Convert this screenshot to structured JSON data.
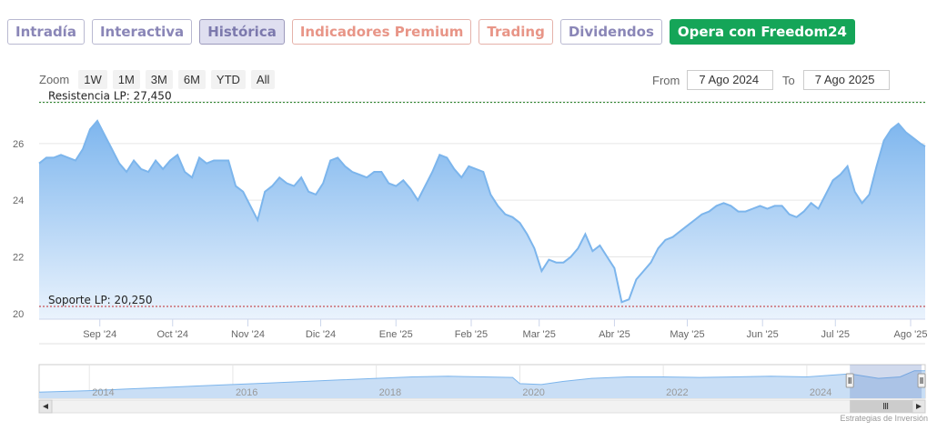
{
  "tabs": [
    {
      "label": "Intradía",
      "style": "purple"
    },
    {
      "label": "Interactiva",
      "style": "purple"
    },
    {
      "label": "Histórica",
      "style": "active"
    },
    {
      "label": "Indicadores Premium",
      "style": "coral"
    },
    {
      "label": "Trading",
      "style": "coral"
    },
    {
      "label": "Dividendos",
      "style": "purple"
    },
    {
      "label": "Opera con Freedom24",
      "style": "green"
    }
  ],
  "zoom": {
    "label": "Zoom",
    "buttons": [
      "1W",
      "1M",
      "3M",
      "6M",
      "YTD",
      "All"
    ]
  },
  "range": {
    "from_label": "From",
    "from_value": "7 Ago 2024",
    "to_label": "To",
    "to_value": "7 Ago 2025"
  },
  "credit": "Estrategias de Inversión",
  "colors": {
    "area_top": "#7eb6ee",
    "area_bottom": "#eaf3fd",
    "line": "#7cb5ec",
    "resistance": "#1a7a1a",
    "support": "#c0282d",
    "navigator_mask": "rgba(102,133,194,0.3)"
  },
  "chart_data": {
    "type": "area",
    "ylim": [
      19.8,
      27.6
    ],
    "yticks": [
      20,
      22,
      24,
      26
    ],
    "x_start": "2024-08-07",
    "x_end": "2025-08-07",
    "xticks": [
      {
        "date": "2024-09-01",
        "label": "Sep '24"
      },
      {
        "date": "2024-10-01",
        "label": "Oct '24"
      },
      {
        "date": "2024-11-01",
        "label": "Nov '24"
      },
      {
        "date": "2024-12-01",
        "label": "Dic '24"
      },
      {
        "date": "2025-01-01",
        "label": "Ene '25"
      },
      {
        "date": "2025-02-01",
        "label": "Feb '25"
      },
      {
        "date": "2025-03-01",
        "label": "Mar '25"
      },
      {
        "date": "2025-04-01",
        "label": "Abr '25"
      },
      {
        "date": "2025-05-01",
        "label": "May '25"
      },
      {
        "date": "2025-06-01",
        "label": "Jun '25"
      },
      {
        "date": "2025-07-01",
        "label": "Jul '25"
      },
      {
        "date": "2025-08-01",
        "label": "Ago '25"
      }
    ],
    "reference_lines": [
      {
        "label": "Resistencia LP: 27,450",
        "value": 27.45,
        "kind": "resistance"
      },
      {
        "label": "Soporte LP: 20,250",
        "value": 20.25,
        "kind": "support"
      }
    ],
    "series": [
      {
        "dates": [
          "2024-08-07",
          "2024-08-10",
          "2024-08-13",
          "2024-08-16",
          "2024-08-19",
          "2024-08-22",
          "2024-08-25",
          "2024-08-28",
          "2024-08-31",
          "2024-09-03",
          "2024-09-06",
          "2024-09-09",
          "2024-09-12",
          "2024-09-15",
          "2024-09-18",
          "2024-09-21",
          "2024-09-24",
          "2024-09-27",
          "2024-09-30",
          "2024-10-03",
          "2024-10-06",
          "2024-10-09",
          "2024-10-12",
          "2024-10-15",
          "2024-10-18",
          "2024-10-21",
          "2024-10-24",
          "2024-10-27",
          "2024-10-30",
          "2024-11-02",
          "2024-11-05",
          "2024-11-08",
          "2024-11-11",
          "2024-11-14",
          "2024-11-17",
          "2024-11-20",
          "2024-11-23",
          "2024-11-26",
          "2024-11-29",
          "2024-12-02",
          "2024-12-05",
          "2024-12-08",
          "2024-12-11",
          "2024-12-14",
          "2024-12-17",
          "2024-12-20",
          "2024-12-23",
          "2024-12-26",
          "2024-12-29",
          "2025-01-01",
          "2025-01-04",
          "2025-01-07",
          "2025-01-10",
          "2025-01-13",
          "2025-01-16",
          "2025-01-19",
          "2025-01-22",
          "2025-01-25",
          "2025-01-28",
          "2025-01-31",
          "2025-02-03",
          "2025-02-06",
          "2025-02-09",
          "2025-02-12",
          "2025-02-15",
          "2025-02-18",
          "2025-02-21",
          "2025-02-24",
          "2025-02-27",
          "2025-03-02",
          "2025-03-05",
          "2025-03-08",
          "2025-03-11",
          "2025-03-14",
          "2025-03-17",
          "2025-03-20",
          "2025-03-23",
          "2025-03-26",
          "2025-03-29",
          "2025-04-01",
          "2025-04-04",
          "2025-04-07",
          "2025-04-10",
          "2025-04-13",
          "2025-04-16",
          "2025-04-19",
          "2025-04-22",
          "2025-04-25",
          "2025-04-28",
          "2025-05-01",
          "2025-05-04",
          "2025-05-07",
          "2025-05-10",
          "2025-05-13",
          "2025-05-16",
          "2025-05-19",
          "2025-05-22",
          "2025-05-25",
          "2025-05-28",
          "2025-05-31",
          "2025-06-03",
          "2025-06-06",
          "2025-06-09",
          "2025-06-12",
          "2025-06-15",
          "2025-06-18",
          "2025-06-21",
          "2025-06-24",
          "2025-06-27",
          "2025-06-30",
          "2025-07-03",
          "2025-07-06",
          "2025-07-09",
          "2025-07-12",
          "2025-07-15",
          "2025-07-18",
          "2025-07-21",
          "2025-07-24",
          "2025-07-27",
          "2025-07-30",
          "2025-08-02",
          "2025-08-05",
          "2025-08-07"
        ],
        "values": [
          25.3,
          25.5,
          25.5,
          25.6,
          25.5,
          25.4,
          25.8,
          26.5,
          26.8,
          26.3,
          25.8,
          25.3,
          25.0,
          25.4,
          25.1,
          25.0,
          25.4,
          25.1,
          25.4,
          25.6,
          25.0,
          24.8,
          25.5,
          25.3,
          25.4,
          25.4,
          25.4,
          24.5,
          24.3,
          23.8,
          23.3,
          24.3,
          24.5,
          24.8,
          24.6,
          24.5,
          24.8,
          24.3,
          24.2,
          24.6,
          25.4,
          25.5,
          25.2,
          25.0,
          24.9,
          24.8,
          25.0,
          25.0,
          24.6,
          24.5,
          24.7,
          24.4,
          24.0,
          24.5,
          25.0,
          25.6,
          25.5,
          25.1,
          24.8,
          25.2,
          25.1,
          25.0,
          24.2,
          23.8,
          23.5,
          23.4,
          23.2,
          22.8,
          22.3,
          21.5,
          21.9,
          21.8,
          21.8,
          22.0,
          22.3,
          22.8,
          22.2,
          22.4,
          22.0,
          21.6,
          20.4,
          20.5,
          21.2,
          21.5,
          21.8,
          22.3,
          22.6,
          22.7,
          22.9,
          23.1,
          23.3,
          23.5,
          23.6,
          23.8,
          23.9,
          23.8,
          23.6,
          23.6,
          23.7,
          23.8,
          23.7,
          23.8,
          23.8,
          23.5,
          23.4,
          23.6,
          23.9,
          23.7,
          24.2,
          24.7,
          24.9,
          25.2,
          24.3,
          23.9,
          24.2,
          25.2,
          26.1,
          26.5,
          26.7,
          26.4,
          26.2,
          26.0,
          25.9
        ]
      }
    ]
  },
  "navigator": {
    "year_labels": [
      "2014",
      "2016",
      "2018",
      "2020",
      "2022",
      "2024"
    ],
    "x_start": 2013.3,
    "x_end": 2025.65,
    "selection_start": 2024.6,
    "selection_end": 2025.6,
    "points": [
      [
        2013.3,
        19.0
      ],
      [
        2014.0,
        19.5
      ],
      [
        2014.5,
        20.0
      ],
      [
        2015.0,
        20.5
      ],
      [
        2015.5,
        21.0
      ],
      [
        2016.0,
        21.5
      ],
      [
        2016.5,
        22.0
      ],
      [
        2017.0,
        22.5
      ],
      [
        2017.5,
        23.0
      ],
      [
        2018.0,
        23.5
      ],
      [
        2018.5,
        24.0
      ],
      [
        2019.0,
        24.2
      ],
      [
        2019.5,
        24.0
      ],
      [
        2019.9,
        23.8
      ],
      [
        2020.0,
        21.8
      ],
      [
        2020.3,
        21.5
      ],
      [
        2020.6,
        22.5
      ],
      [
        2021.0,
        23.5
      ],
      [
        2021.5,
        24.0
      ],
      [
        2022.0,
        24.0
      ],
      [
        2022.5,
        23.8
      ],
      [
        2023.0,
        24.0
      ],
      [
        2023.5,
        24.2
      ],
      [
        2024.0,
        24.0
      ],
      [
        2024.6,
        25.0
      ],
      [
        2025.0,
        23.5
      ],
      [
        2025.3,
        24.0
      ],
      [
        2025.5,
        26.0
      ],
      [
        2025.65,
        26.0
      ]
    ]
  }
}
